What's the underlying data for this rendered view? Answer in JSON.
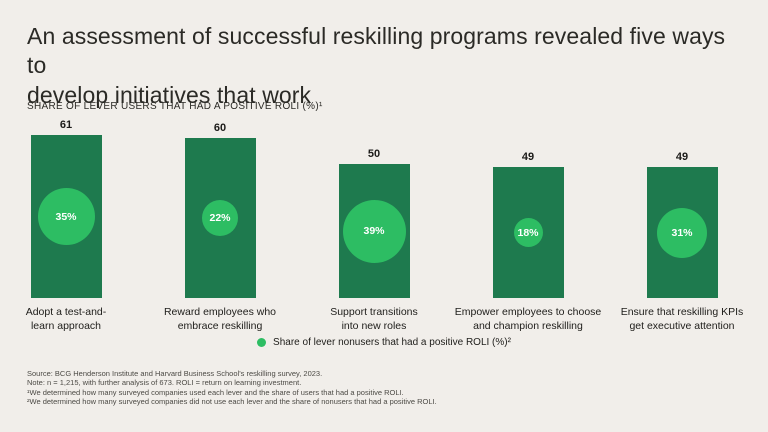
{
  "colors": {
    "background": "#f1eeea",
    "bar_green": "#1e7a4e",
    "circle_green": "#2dbd63",
    "title_text": "#2b2a26",
    "body_text": "#21201d",
    "footer_text": "#4c4a45",
    "circle_text": "#ffffff"
  },
  "header": {
    "title_line1": "An assessment of successful reskilling programs revealed five ways to",
    "title_line2": "develop initiatives that work",
    "axis_label": "SHARE OF LEVER USERS THAT HAD A POSITIVE ROLI (%)¹"
  },
  "legend": {
    "label": "Share of lever nonusers that had a positive ROLI (%)²"
  },
  "footer": {
    "lines": [
      "Source: BCG Henderson Institute and Harvard Business School's reskilling survey, 2023.",
      "Note: n = 1,215, with further analysis of 673. ROLI = return on learning investment.",
      "¹We determined how many surveyed companies used each lever and the share of users that had a positive ROLI.",
      "²We determined how many surveyed companies did not use each lever and the share of nonusers that had a positive ROLI."
    ]
  },
  "chart_data": {
    "type": "bar",
    "title": "An assessment of successful reskilling programs revealed five ways to develop initiatives that work",
    "ylabel": "SHARE OF LEVER USERS THAT HAD A POSITIVE ROLI (%)¹",
    "xlabel": "",
    "ylim": [
      0,
      61
    ],
    "grid": false,
    "legend_position": "bottom-center",
    "categories": [
      "Adopt a test-and-learn approach",
      "Reward employees who embrace reskilling",
      "Support transitions into new roles",
      "Empower employees to choose and champion reskilling",
      "Ensure that reskilling KPIs get executive attention"
    ],
    "series": [
      {
        "name": "Share of lever users that had a positive ROLI (%)¹",
        "values": [
          61,
          60,
          50,
          49,
          49
        ]
      },
      {
        "name": "Share of lever nonusers that had a positive ROLI (%)²",
        "values": [
          35,
          22,
          39,
          18,
          31
        ]
      }
    ],
    "bars": [
      {
        "label_lines": [
          "Adopt a test-and-",
          "learn approach"
        ],
        "value": 61,
        "value_label": "61",
        "circle_value": 35,
        "circle_label": "35%"
      },
      {
        "label_lines": [
          "Reward employees who",
          "embrace reskilling"
        ],
        "value": 60,
        "value_label": "60",
        "circle_value": 22,
        "circle_label": "22%"
      },
      {
        "label_lines": [
          "Support transitions",
          "into new roles"
        ],
        "value": 50,
        "value_label": "50",
        "circle_value": 39,
        "circle_label": "39%"
      },
      {
        "label_lines": [
          "Empower employees to choose",
          "and champion reskilling"
        ],
        "value": 49,
        "value_label": "49",
        "circle_value": 18,
        "circle_label": "18%"
      },
      {
        "label_lines": [
          "Ensure that reskilling KPIs",
          "get executive attention"
        ],
        "value": 49,
        "value_label": "49",
        "circle_value": 31,
        "circle_label": "31%"
      }
    ]
  }
}
